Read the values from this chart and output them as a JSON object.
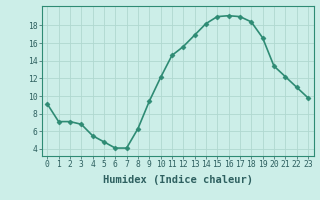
{
  "x": [
    0,
    1,
    2,
    3,
    4,
    5,
    6,
    7,
    8,
    9,
    10,
    11,
    12,
    13,
    14,
    15,
    16,
    17,
    18,
    19,
    20,
    21,
    22,
    23
  ],
  "y": [
    9.1,
    7.1,
    7.1,
    6.8,
    5.5,
    4.8,
    4.1,
    4.1,
    6.3,
    9.4,
    12.1,
    14.6,
    15.6,
    16.9,
    18.2,
    19.0,
    19.1,
    19.0,
    18.4,
    16.6,
    13.4,
    12.2,
    11.0,
    9.8
  ],
  "xlabel": "Humidex (Indice chaleur)",
  "ylabel": "",
  "xlim": [
    -0.5,
    23.5
  ],
  "ylim": [
    3.2,
    20.2
  ],
  "yticks": [
    4,
    6,
    8,
    10,
    12,
    14,
    16,
    18
  ],
  "xticks": [
    0,
    1,
    2,
    3,
    4,
    5,
    6,
    7,
    8,
    9,
    10,
    11,
    12,
    13,
    14,
    15,
    16,
    17,
    18,
    19,
    20,
    21,
    22,
    23
  ],
  "line_color": "#2e8b74",
  "marker": "D",
  "marker_size": 2.5,
  "bg_color": "#cceee8",
  "grid_color": "#b0d8d0",
  "axes_color": "#2e8b74",
  "tick_color": "#2e6060",
  "label_fontsize": 6.5,
  "tick_fontsize": 5.8,
  "xlabel_fontsize": 7.5,
  "line_width": 1.2
}
